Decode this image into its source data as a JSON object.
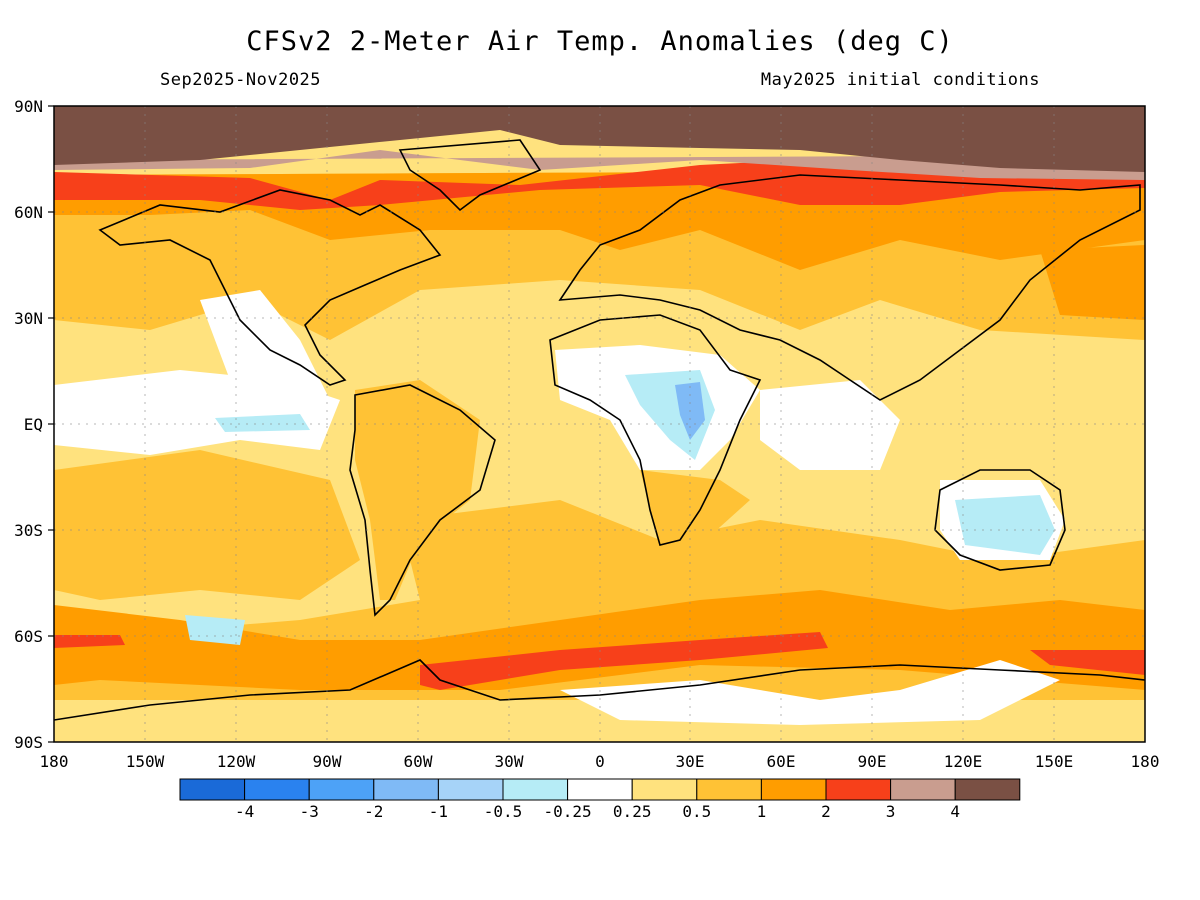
{
  "title": "CFSv2 2-Meter Air Temp. Anomalies (deg C)",
  "period": "Sep2025-Nov2025",
  "initial_conditions": "May2025 initial conditions",
  "map": {
    "projection": "equirectangular",
    "lon_range": [
      -180,
      180
    ],
    "lat_range": [
      -90,
      90
    ],
    "lat_labels": [
      "90N",
      "60N",
      "30N",
      "EQ",
      "30S",
      "60S",
      "90S"
    ],
    "lon_labels": [
      "180",
      "150W",
      "120W",
      "90W",
      "60W",
      "30W",
      "0",
      "30E",
      "60E",
      "90E",
      "120E",
      "150E",
      "180"
    ],
    "ocean_color": "#ffe27e"
  },
  "colorbar": {
    "colors": [
      "#1a6ad8",
      "#2a82ef",
      "#4da2f7",
      "#7fbaf6",
      "#a6d3f8",
      "#b6ecf6",
      "#ffffff",
      "#ffe27e",
      "#ffc235",
      "#ff9d00",
      "#f7401a",
      "#c99d8f",
      "#7a5044"
    ],
    "labels": [
      "-4",
      "-3",
      "-2",
      "-1",
      "-0.5",
      "-0.25",
      "0.25",
      "0.5",
      "1",
      "2",
      "3",
      "4"
    ]
  }
}
